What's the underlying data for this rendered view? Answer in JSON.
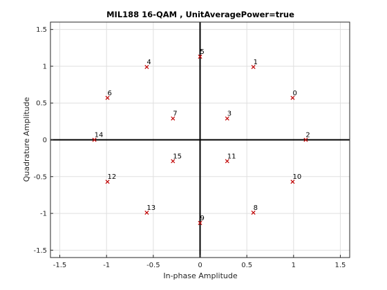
{
  "chart_data": {
    "type": "scatter",
    "title": "MIL188 16-QAM , UnitAveragePower=true",
    "xlabel": "In-phase Amplitude",
    "ylabel": "Quadrature Amplitude",
    "xlim": [
      -1.6,
      1.6
    ],
    "ylim": [
      -1.6,
      1.6
    ],
    "xticks": [
      -1.5,
      -1,
      -0.5,
      0,
      0.5,
      1,
      1.5
    ],
    "yticks": [
      -1.5,
      -1,
      -0.5,
      0,
      0.5,
      1,
      1.5
    ],
    "xtick_labels": [
      "-1.5",
      "-1",
      "-0.5",
      "0",
      "0.5",
      "1",
      "1.5"
    ],
    "ytick_labels": [
      "-1.5",
      "-1",
      "-0.5",
      "0",
      "0.5",
      "1",
      "1.5"
    ],
    "grid": true,
    "marker": "x",
    "marker_color": "#c00000",
    "points": [
      {
        "label": "0",
        "x": 0.99,
        "y": 0.57
      },
      {
        "label": "1",
        "x": 0.57,
        "y": 0.99
      },
      {
        "label": "2",
        "x": 1.13,
        "y": 0.0
      },
      {
        "label": "3",
        "x": 0.29,
        "y": 0.29
      },
      {
        "label": "4",
        "x": -0.57,
        "y": 0.99
      },
      {
        "label": "5",
        "x": 0.0,
        "y": 1.13
      },
      {
        "label": "6",
        "x": -0.99,
        "y": 0.57
      },
      {
        "label": "7",
        "x": -0.29,
        "y": 0.29
      },
      {
        "label": "8",
        "x": 0.57,
        "y": -0.99
      },
      {
        "label": "9",
        "x": 0.0,
        "y": -1.13
      },
      {
        "label": "10",
        "x": 0.99,
        "y": -0.57
      },
      {
        "label": "11",
        "x": 0.29,
        "y": -0.29
      },
      {
        "label": "12",
        "x": -0.99,
        "y": -0.57
      },
      {
        "label": "13",
        "x": -0.57,
        "y": -0.99
      },
      {
        "label": "14",
        "x": -1.13,
        "y": 0.0
      },
      {
        "label": "15",
        "x": -0.29,
        "y": -0.29
      }
    ]
  }
}
